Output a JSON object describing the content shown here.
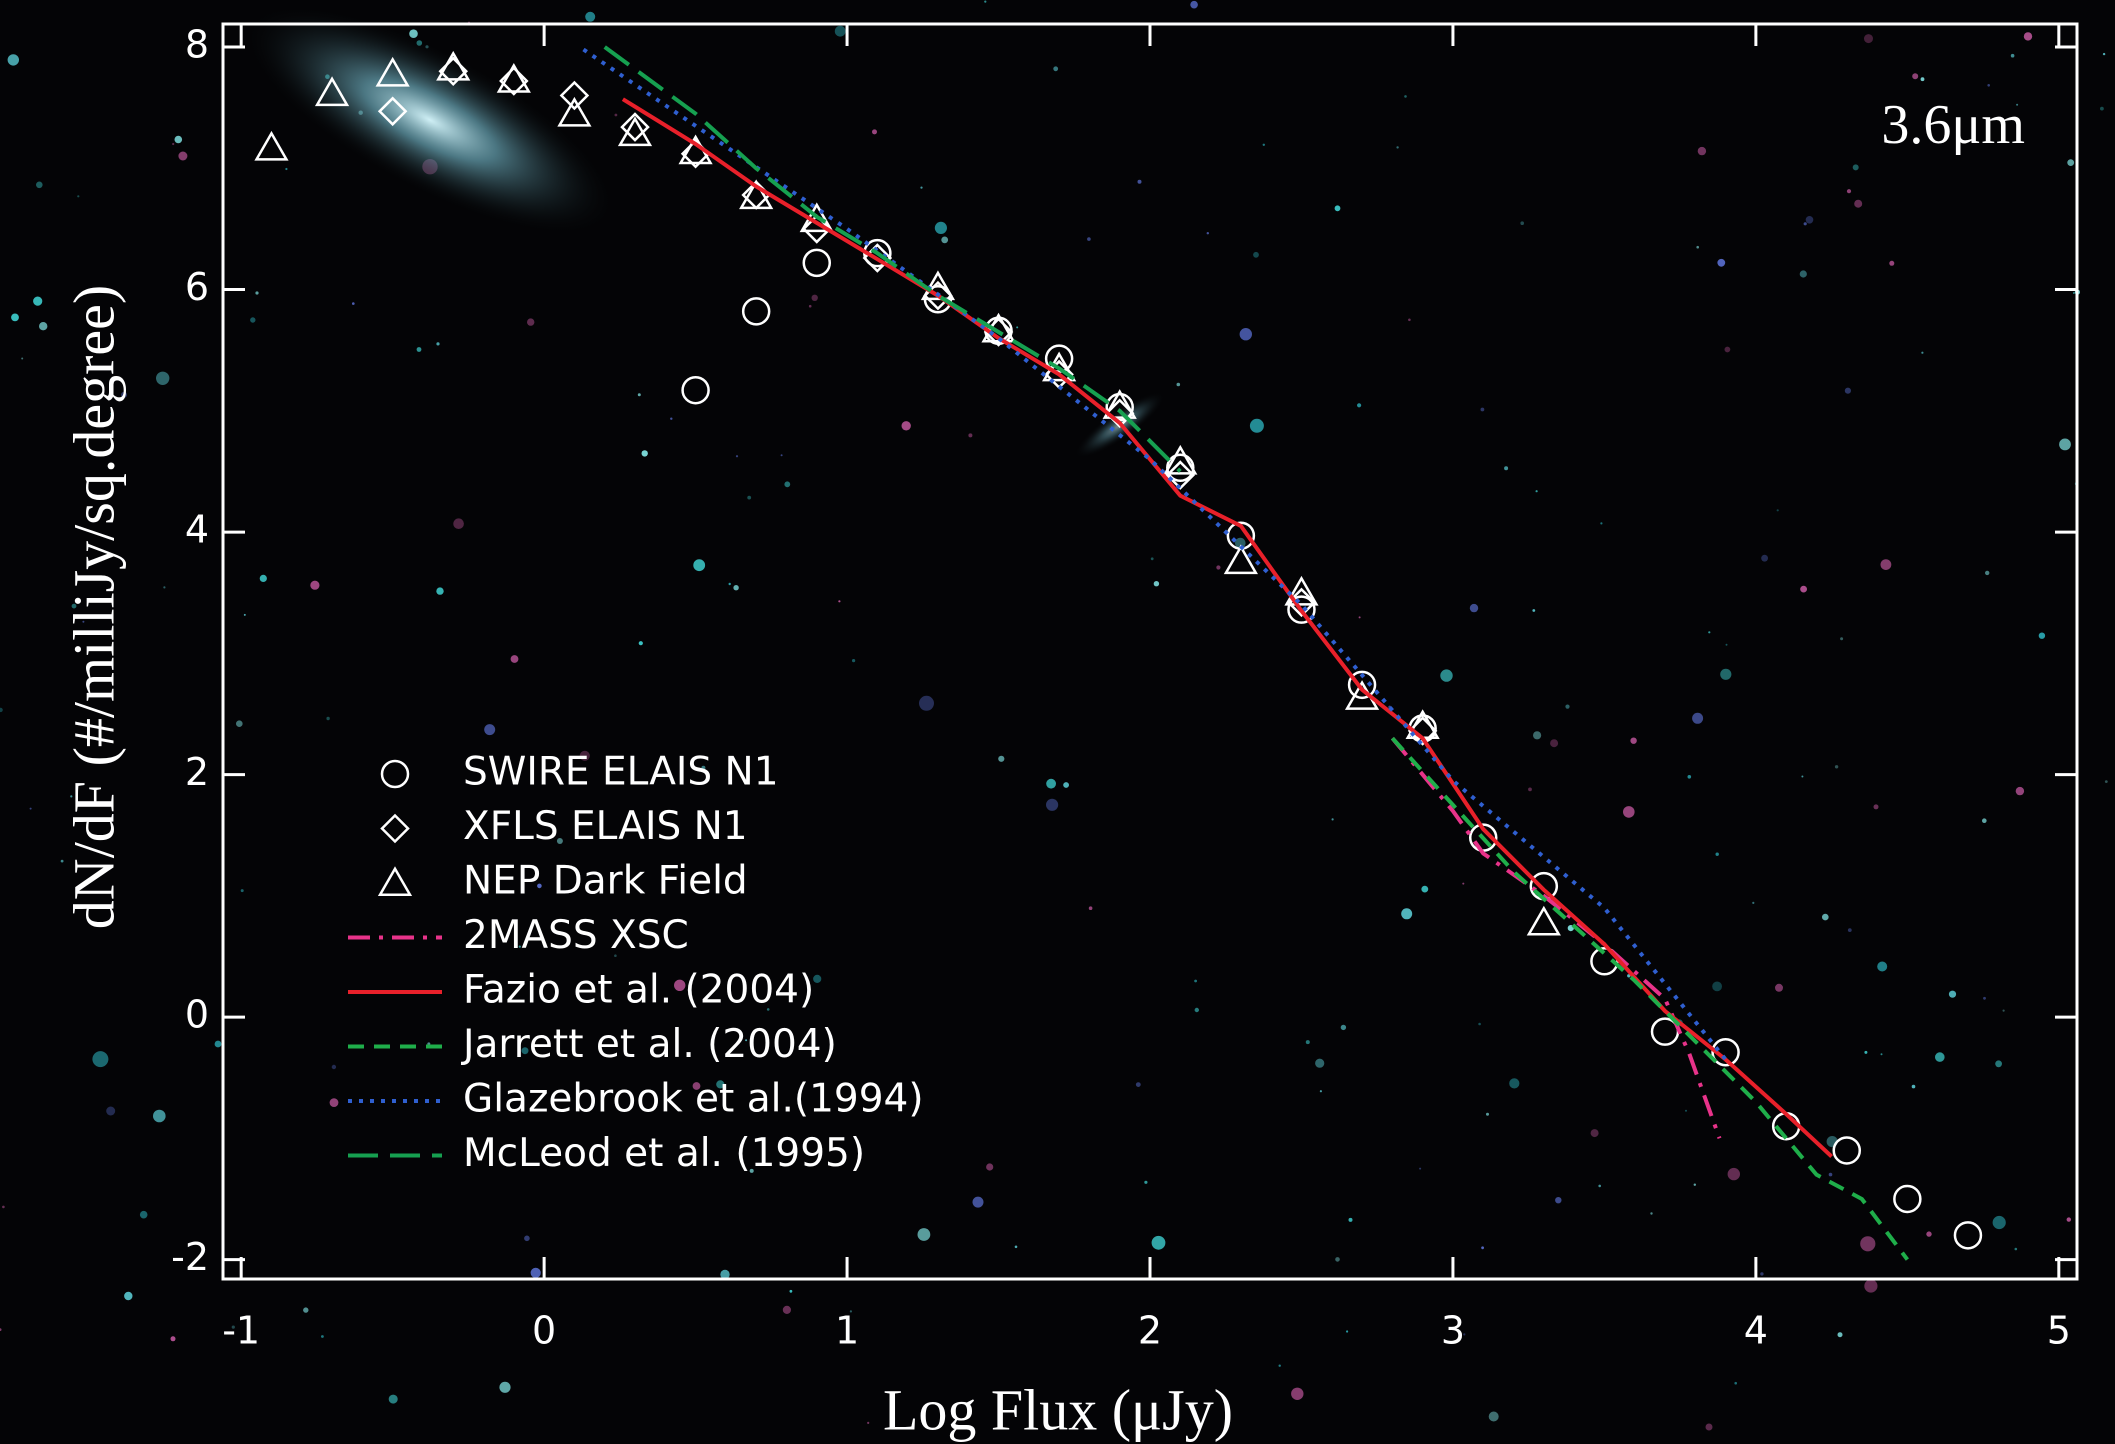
{
  "chart_data": {
    "type": "scatter",
    "xlabel": "Log Flux (μJy)",
    "ylabel": "dN/dF (#/milliJy/sq.degree)",
    "annotation": "3.6μm",
    "xlim": [
      -1.06,
      5.06
    ],
    "ylim": [
      -2.16,
      8.19
    ],
    "xticks": [
      -1,
      0,
      1,
      2,
      3,
      4,
      5
    ],
    "yticks": [
      -2,
      0,
      2,
      4,
      6,
      8
    ],
    "series": [
      {
        "name": "SWIRE ELAIS N1",
        "color": "#ffffff",
        "marker": "circle",
        "x": [
          0.5,
          0.7,
          0.9,
          1.1,
          1.3,
          1.5,
          1.7,
          1.9,
          2.1,
          2.3,
          2.5,
          2.7,
          2.9,
          3.1,
          3.3,
          3.5,
          3.7,
          3.9,
          4.1,
          4.3,
          4.5,
          4.7
        ],
        "values": [
          5.17,
          5.82,
          6.22,
          6.3,
          5.92,
          5.66,
          5.43,
          5.03,
          4.53,
          3.97,
          3.36,
          2.74,
          2.38,
          1.48,
          1.08,
          0.46,
          -0.12,
          -0.29,
          -0.9,
          -1.1,
          -1.5,
          -1.8
        ]
      },
      {
        "name": "XFLS ELAIS N1",
        "color": "#ffffff",
        "marker": "diamond",
        "x": [
          -0.5,
          -0.3,
          -0.1,
          0.1,
          0.3,
          0.5,
          0.7,
          0.9,
          1.1,
          1.3,
          1.5,
          1.7,
          1.9,
          2.1,
          2.5,
          2.9
        ],
        "values": [
          7.47,
          7.8,
          7.72,
          7.6,
          7.34,
          7.12,
          6.78,
          6.5,
          6.26,
          5.95,
          5.65,
          5.3,
          4.98,
          4.47,
          3.42,
          2.36
        ]
      },
      {
        "name": "NEP Dark Field",
        "color": "#ffffff",
        "marker": "triangle",
        "x": [
          -0.9,
          -0.7,
          -0.5,
          -0.3,
          -0.1,
          0.1,
          0.3,
          0.5,
          0.7,
          0.9,
          1.3,
          1.5,
          1.7,
          1.9,
          2.1,
          2.3,
          2.5,
          2.7,
          2.9,
          3.3
        ],
        "values": [
          7.17,
          7.62,
          7.78,
          7.83,
          7.73,
          7.45,
          7.29,
          7.14,
          6.77,
          6.58,
          6.02,
          5.67,
          5.35,
          5.04,
          4.58,
          3.76,
          3.5,
          2.64,
          2.4,
          0.78
        ]
      },
      {
        "name": "2MASS XSC",
        "color": "#e8338a",
        "style": "dashdot",
        "x": [
          2.8,
          3.0,
          3.1,
          3.3,
          3.5,
          3.7,
          3.78,
          3.88
        ],
        "values": [
          2.3,
          1.7,
          1.35,
          1.0,
          0.6,
          0.15,
          -0.3,
          -1.0
        ]
      },
      {
        "name": "Fazio et al. (2004)",
        "color": "#e8202a",
        "style": "solid",
        "x": [
          0.26,
          0.5,
          0.7,
          0.9,
          1.1,
          1.3,
          1.5,
          1.7,
          1.9,
          2.1,
          2.3,
          2.5,
          2.7,
          2.9,
          3.1,
          3.3,
          3.5,
          3.7,
          3.9,
          4.1,
          4.25
        ],
        "values": [
          7.57,
          7.2,
          6.85,
          6.55,
          6.25,
          5.95,
          5.6,
          5.3,
          4.9,
          4.3,
          4.05,
          3.35,
          2.7,
          2.3,
          1.55,
          1.05,
          0.6,
          0.05,
          -0.35,
          -0.8,
          -1.15
        ]
      },
      {
        "name": "Jarrett et al. (2004)",
        "color": "#1fae4a",
        "style": "dashed",
        "x": [
          2.8,
          3.0,
          3.2,
          3.4,
          3.6,
          3.8,
          4.0,
          4.2,
          4.35,
          4.5
        ],
        "values": [
          2.3,
          1.75,
          1.2,
          0.75,
          0.3,
          -0.2,
          -0.7,
          -1.3,
          -1.5,
          -2.0
        ]
      },
      {
        "name": "Glazebrook et al.(1994)",
        "color": "#2f5fd0",
        "style": "dotted",
        "x": [
          0.13,
          0.5,
          1.0,
          1.5,
          2.0,
          2.5,
          3.0,
          3.5,
          3.9
        ],
        "values": [
          7.98,
          7.35,
          6.5,
          5.6,
          4.6,
          3.4,
          1.95,
          0.9,
          -0.35
        ]
      },
      {
        "name": "McLeod et al. (1995)",
        "color": "#16a050",
        "style": "longdash",
        "x": [
          0.2,
          0.5,
          0.7,
          0.9,
          1.1,
          1.3,
          1.5,
          1.7,
          1.9,
          2.1
        ],
        "values": [
          8.0,
          7.45,
          7.0,
          6.6,
          6.3,
          5.95,
          5.65,
          5.35,
          5.0,
          4.5
        ]
      }
    ]
  }
}
